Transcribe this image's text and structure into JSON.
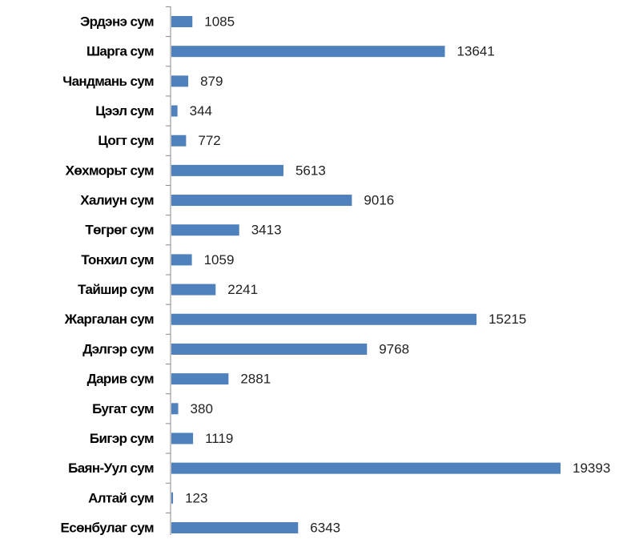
{
  "chart_data": {
    "type": "barh",
    "color": "#4f81bd",
    "categories": [
      "Эрдэнэ сум",
      "Шарга сум",
      "Чандмань сум",
      "Цээл сум",
      "Цогт сум",
      "Хөхморьт сум",
      "Халиун сум",
      "Төгрөг сум",
      "Тонхил сум",
      "Тайшир сум",
      "Жаргалан сум",
      "Дэлгэр сум",
      "Дарив сум",
      "Бугат сум",
      "Бигэр сум",
      "Баян-Уул сум",
      "Алтай сум",
      "Есөнбулаг сум"
    ],
    "values": [
      1085,
      13641,
      879,
      344,
      772,
      5613,
      9016,
      3413,
      1059,
      2241,
      15215,
      9768,
      2881,
      380,
      1119,
      19393,
      123,
      6343
    ]
  }
}
